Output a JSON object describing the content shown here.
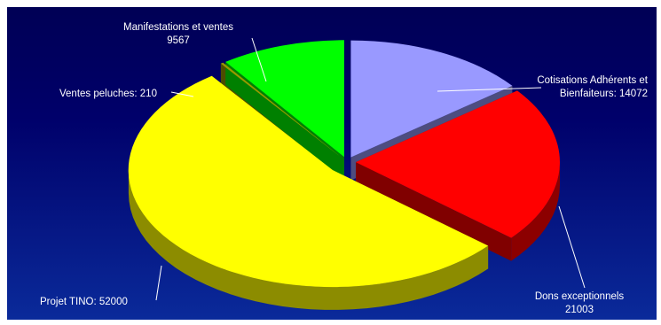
{
  "chart_data": {
    "type": "pie",
    "title": "",
    "exploded": true,
    "three_d": true,
    "background": {
      "top": "#000055",
      "bottom": "#0a2a9a"
    },
    "slices": [
      {
        "label_lines": [
          "Cotisations Adhérents et",
          "Bienfaiteurs: 14072"
        ],
        "value": 14072,
        "color": "#9999ff"
      },
      {
        "label_lines": [
          "Dons exceptionnels",
          "21003"
        ],
        "value": 21003,
        "color": "#ff0000"
      },
      {
        "label_lines": [
          "Projet TINO: 52000"
        ],
        "value": 52000,
        "color": "#ffff00"
      },
      {
        "label_lines": [
          "Ventes peluches: 210"
        ],
        "value": 210,
        "color": "#999900"
      },
      {
        "label_lines": [
          "Manifestations et ventes",
          "9567"
        ],
        "value": 9567,
        "color": "#00ff00"
      }
    ]
  }
}
